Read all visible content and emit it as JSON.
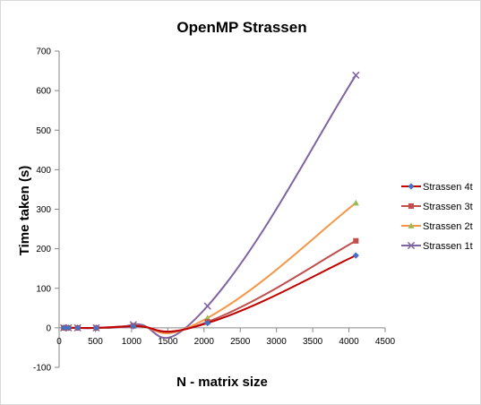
{
  "chart_data": {
    "type": "scatter",
    "title": "OpenMP Strassen",
    "xlabel": "N - matrix size",
    "ylabel": "Time taken (s)",
    "xlim": [
      0,
      4500
    ],
    "ylim": [
      -100,
      700
    ],
    "x_ticks": [
      0,
      500,
      1000,
      1500,
      2000,
      2500,
      3000,
      3500,
      4000,
      4500
    ],
    "y_ticks": [
      -100,
      0,
      100,
      200,
      300,
      400,
      500,
      600,
      700
    ],
    "x_tick_labels": [
      "0",
      "500",
      "1000",
      "1500",
      "2000",
      "2500",
      "3000",
      "3500",
      "4000",
      "4500"
    ],
    "y_tick_labels": [
      "-100",
      "0",
      "100",
      "200",
      "300",
      "400",
      "500",
      "600",
      "700"
    ],
    "grid": false,
    "legend_position": "right",
    "x": [
      64,
      128,
      256,
      512,
      1024,
      2048,
      4096
    ],
    "series": [
      {
        "name": "Strassen 4t",
        "color": "#c00000",
        "marker": "diamond",
        "marker_color": "#4472c4",
        "values": [
          0,
          0,
          0,
          0,
          4,
          12,
          183
        ]
      },
      {
        "name": "Strassen 3t",
        "color": "#c0504d",
        "marker": "square",
        "marker_color": "#c0504d",
        "values": [
          0,
          0,
          0,
          0,
          5,
          15,
          220
        ]
      },
      {
        "name": "Strassen 2t",
        "color": "#f79646",
        "marker": "triangle",
        "marker_color": "#9bbb59",
        "values": [
          0,
          0,
          0,
          0,
          5,
          25,
          316
        ]
      },
      {
        "name": "Strassen 1t",
        "color": "#8064a2",
        "marker": "x",
        "marker_color": "#8064a2",
        "values": [
          0,
          0,
          0,
          0,
          8,
          55,
          639
        ]
      }
    ]
  }
}
